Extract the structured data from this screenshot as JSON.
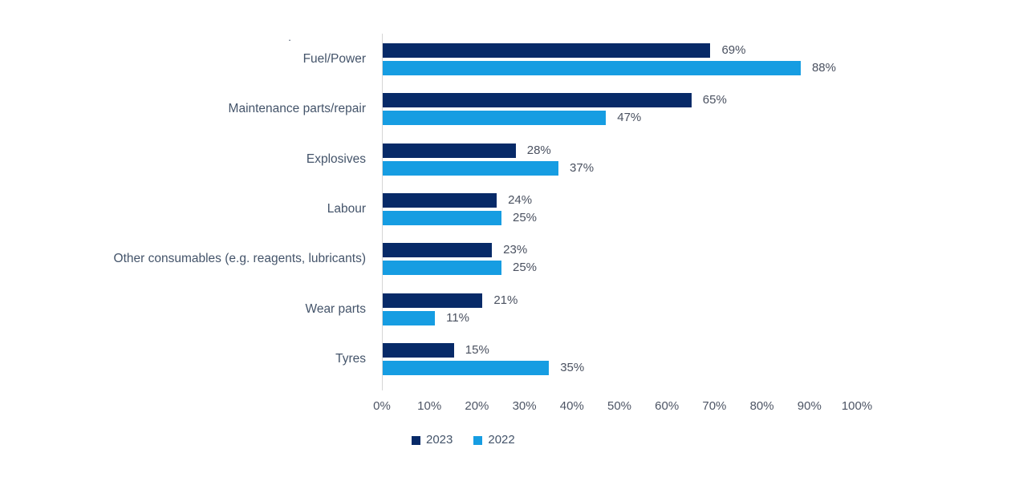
{
  "chart_data": {
    "type": "bar",
    "orientation": "horizontal",
    "title_dot": ".",
    "categories": [
      "Fuel/Power",
      "Maintenance parts/repair",
      "Explosives",
      "Labour",
      "Other consumables (e.g. reagents, lubricants)",
      "Wear parts",
      "Tyres"
    ],
    "series": [
      {
        "name": "2023",
        "color": "#072a68",
        "values": [
          69,
          65,
          28,
          24,
          23,
          21,
          15
        ]
      },
      {
        "name": "2022",
        "color": "#169de2",
        "values": [
          88,
          47,
          37,
          25,
          25,
          11,
          35
        ]
      }
    ],
    "value_suffix": "%",
    "x_ticks": [
      "0%",
      "10%",
      "20%",
      "30%",
      "40%",
      "50%",
      "60%",
      "70%",
      "80%",
      "90%",
      "100%"
    ],
    "xlim": [
      0,
      100
    ],
    "grid": false,
    "legend_position": "bottom",
    "colors": {
      "axis_line": "#d6d6d6",
      "category_text": "#44546a",
      "value_text": "#4a5160",
      "tick_text": "#4d5565"
    }
  }
}
